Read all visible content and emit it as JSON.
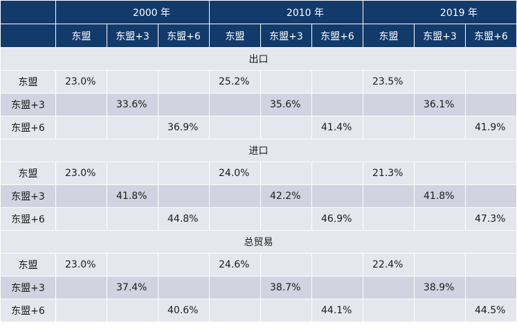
{
  "years": [
    "2000 年",
    "2010 年",
    "2019 年"
  ],
  "groups": [
    "东盟",
    "东盟+3",
    "东盟+6"
  ],
  "sections": [
    {
      "title": "出口",
      "rows": [
        {
          "label": "东盟",
          "values": [
            "23.0%",
            "",
            "",
            "25.2%",
            "",
            "",
            "23.5%",
            "",
            ""
          ]
        },
        {
          "label": "东盟+3",
          "values": [
            "",
            "33.6%",
            "",
            "",
            "35.6%",
            "",
            "",
            "36.1%",
            ""
          ]
        },
        {
          "label": "东盟+6",
          "values": [
            "",
            "",
            "36.9%",
            "",
            "",
            "41.4%",
            "",
            "",
            "41.9%"
          ]
        }
      ]
    },
    {
      "title": "进口",
      "rows": [
        {
          "label": "东盟",
          "values": [
            "23.0%",
            "",
            "",
            "24.0%",
            "",
            "",
            "21.3%",
            "",
            ""
          ]
        },
        {
          "label": "东盟+3",
          "values": [
            "",
            "41.8%",
            "",
            "",
            "42.2%",
            "",
            "",
            "41.8%",
            ""
          ]
        },
        {
          "label": "东盟+6",
          "values": [
            "",
            "",
            "44.8%",
            "",
            "",
            "46.9%",
            "",
            "",
            "47.3%"
          ]
        }
      ]
    },
    {
      "title": "总贸易",
      "rows": [
        {
          "label": "东盟",
          "values": [
            "23.0%",
            "",
            "",
            "24.6%",
            "",
            "",
            "22.4%",
            "",
            ""
          ]
        },
        {
          "label": "东盟+3",
          "values": [
            "",
            "37.4%",
            "",
            "",
            "38.7%",
            "",
            "",
            "38.9%",
            ""
          ]
        },
        {
          "label": "东盟+6",
          "values": [
            "",
            "",
            "40.6%",
            "",
            "",
            "44.1%",
            "",
            "",
            "44.5%"
          ]
        }
      ]
    }
  ],
  "colors": {
    "header_bg": "#123a6b",
    "header_text": "#ffffff",
    "row_light": "#e6e6ee",
    "row_dark": "#d2d2e0"
  }
}
